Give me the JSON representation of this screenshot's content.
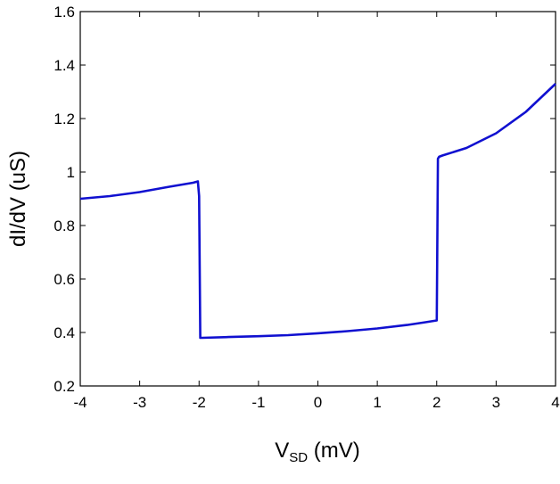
{
  "chart_data": {
    "type": "line",
    "xlabel": {
      "main": "V",
      "sub": "SD",
      "unit": " (mV)"
    },
    "ylabel": "dI/dV (uS)",
    "xlim": [
      -4,
      4
    ],
    "ylim": [
      0.2,
      1.6
    ],
    "xticks": [
      -4,
      -3,
      -2,
      -1,
      0,
      1,
      2,
      3,
      4
    ],
    "xtick_labels": [
      "-4",
      "-3",
      "-2",
      "-1",
      "0",
      "1",
      "2",
      "3",
      "4"
    ],
    "yticks": [
      0.2,
      0.4,
      0.6,
      0.8,
      1.0,
      1.2,
      1.4,
      1.6
    ],
    "ytick_labels": [
      "0.2",
      "0.4",
      "0.6",
      "0.8",
      "1",
      "1.2",
      "1.4",
      "1.6"
    ],
    "grid": false,
    "series": [
      {
        "color": "#1010d0",
        "x": [
          -4.0,
          -3.5,
          -3.0,
          -2.5,
          -2.1,
          -2.02,
          -2.0,
          -1.98,
          -1.95,
          -1.5,
          -1.0,
          -0.5,
          0.0,
          0.5,
          1.0,
          1.5,
          1.8,
          2.0,
          2.02,
          2.04,
          2.1,
          2.5,
          3.0,
          3.5,
          4.0
        ],
        "y": [
          0.9,
          0.91,
          0.925,
          0.945,
          0.96,
          0.965,
          0.91,
          0.38,
          0.38,
          0.383,
          0.386,
          0.39,
          0.397,
          0.405,
          0.415,
          0.428,
          0.438,
          0.445,
          1.05,
          1.057,
          1.062,
          1.09,
          1.145,
          1.225,
          1.33
        ]
      }
    ]
  }
}
